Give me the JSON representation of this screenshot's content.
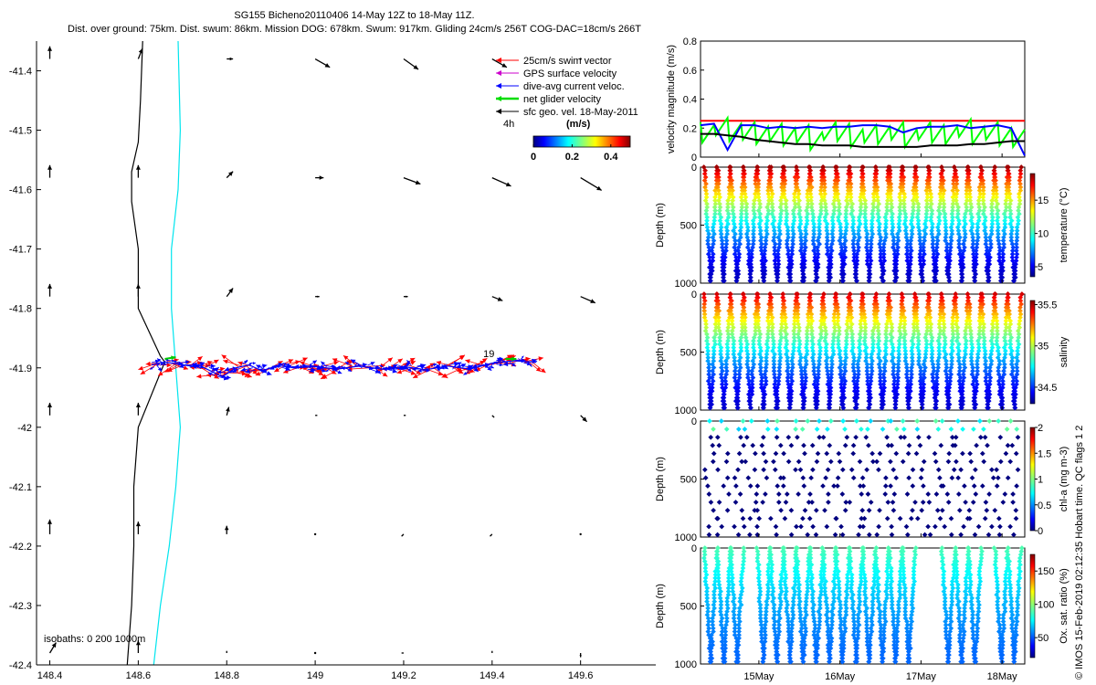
{
  "title": {
    "line1": "SG155 Bicheno20110406 14-May 12Z to 18-May 11Z.",
    "line2": "Dist. over ground: 75km. Dist. swum: 86km. Mission DOG: 678km. Swum: 917km. Gliding 24cm/s 256T COG-DAC=18cm/s 266T"
  },
  "copyright": "© IMOS 15-Feb-2019 02:12:35 Hobart time. QC flags 1  2",
  "chart_data": [
    {
      "type": "map",
      "xlim": [
        148.37,
        149.77
      ],
      "ylim": [
        -42.4,
        -41.35
      ],
      "x_ticks": [
        "148.4",
        "148.6",
        "148.8",
        "149",
        "149.2",
        "149.4",
        "149.6"
      ],
      "x_tick_values": [
        148.4,
        148.6,
        148.8,
        149.0,
        149.2,
        149.4,
        149.6
      ],
      "y_ticks": [
        "-41.4",
        "-41.5",
        "-41.6",
        "-41.7",
        "-41.8",
        "-41.9",
        "-42",
        "-42.1",
        "-42.2",
        "-42.3",
        "-42.4"
      ],
      "y_tick_values": [
        -41.4,
        -41.5,
        -41.6,
        -41.7,
        -41.8,
        -41.9,
        -42.0,
        -42.1,
        -42.2,
        -42.3,
        -42.4
      ],
      "legend": {
        "placement": "top-right",
        "entries": [
          {
            "label": "25cm/s swim vector",
            "color": "#ff0000"
          },
          {
            "label": "GPS surface velocity",
            "color": "#cc00cc"
          },
          {
            "label": "dive-avg current veloc.",
            "color": "#0000ff"
          },
          {
            "label": "net glider velocity",
            "color": "#00dd00"
          },
          {
            "label": "sfc geo. vel. 18-May-2011",
            "color": "#000000"
          }
        ],
        "time_label": "4h",
        "units_label": "(m/s)",
        "colorbar_ticks": [
          "0",
          "0.2",
          "0.4"
        ],
        "colorbar_tick_values": [
          0,
          0.2,
          0.4
        ],
        "colorbar_range": [
          0,
          0.5
        ]
      },
      "isobath_label": "isobaths: 0   200  1000m",
      "dive_label": "19",
      "isobath_200": [
        [
          148.61,
          -41.35
        ],
        [
          148.605,
          -41.45
        ],
        [
          148.6,
          -41.52
        ],
        [
          148.585,
          -41.57
        ],
        [
          148.585,
          -41.62
        ],
        [
          148.6,
          -41.7
        ],
        [
          148.6,
          -41.8
        ],
        [
          148.65,
          -41.88
        ],
        [
          148.66,
          -41.89
        ],
        [
          148.6,
          -42.0
        ],
        [
          148.59,
          -42.1
        ],
        [
          148.59,
          -42.2
        ],
        [
          148.585,
          -42.3
        ],
        [
          148.575,
          -42.4
        ]
      ],
      "isobath_1000": [
        [
          148.69,
          -41.35
        ],
        [
          148.695,
          -41.5
        ],
        [
          148.69,
          -41.6
        ],
        [
          148.675,
          -41.7
        ],
        [
          148.675,
          -41.8
        ],
        [
          148.685,
          -41.9
        ],
        [
          148.695,
          -42.0
        ],
        [
          148.685,
          -42.1
        ],
        [
          148.67,
          -42.2
        ],
        [
          148.65,
          -42.3
        ],
        [
          148.635,
          -42.4
        ]
      ],
      "track": [
        [
          148.63,
          -41.895
        ],
        [
          148.66,
          -41.89
        ],
        [
          148.7,
          -41.895
        ],
        [
          148.75,
          -41.9
        ],
        [
          148.79,
          -41.915
        ],
        [
          148.82,
          -41.9
        ],
        [
          148.85,
          -41.895
        ],
        [
          148.88,
          -41.905
        ],
        [
          148.92,
          -41.895
        ],
        [
          148.95,
          -41.9
        ],
        [
          149.0,
          -41.898
        ],
        [
          149.05,
          -41.902
        ],
        [
          149.1,
          -41.897
        ],
        [
          149.15,
          -41.902
        ],
        [
          149.2,
          -41.898
        ],
        [
          149.25,
          -41.903
        ],
        [
          149.3,
          -41.897
        ],
        [
          149.35,
          -41.902
        ],
        [
          149.4,
          -41.892
        ],
        [
          149.45,
          -41.888
        ],
        [
          149.49,
          -41.89
        ]
      ],
      "current_vectors": {
        "lons": [
          148.4,
          148.6,
          148.8,
          149.0,
          149.2,
          149.4,
          149.6
        ],
        "lats": [
          -41.38,
          -41.58,
          -41.78,
          -41.98,
          -42.18,
          -42.38
        ],
        "u": [
          [
            0.0,
            0.02,
            0.03,
            0.07,
            0.07,
            0.07,
            0.0
          ],
          [
            0.0,
            0.0,
            0.03,
            0.04,
            0.08,
            0.09,
            0.1
          ],
          [
            0.0,
            0.0,
            0.03,
            0.02,
            0.02,
            0.05,
            0.07
          ],
          [
            0.0,
            0.0,
            0.01,
            0.01,
            0.01,
            0.01,
            0.03
          ],
          [
            0.0,
            0.0,
            0.0,
            0.0,
            -0.01,
            -0.01,
            0.0
          ],
          [
            0.03,
            0.0,
            0.0,
            0.0,
            -0.01,
            0.0,
            0.0
          ]
        ],
        "v": [
          [
            0.06,
            0.05,
            0.0,
            -0.04,
            -0.05,
            -0.04,
            0.0
          ],
          [
            0.06,
            0.06,
            0.03,
            0.0,
            -0.03,
            -0.04,
            -0.06
          ],
          [
            0.06,
            0.06,
            0.04,
            0.0,
            0.0,
            -0.02,
            -0.03
          ],
          [
            0.06,
            0.06,
            0.04,
            0.0,
            0.0,
            -0.01,
            -0.03
          ],
          [
            0.07,
            0.06,
            0.04,
            0.0,
            -0.01,
            -0.01,
            0.0
          ],
          [
            0.05,
            0.06,
            0.01,
            0.0,
            0.0,
            0.01,
            -0.02
          ]
        ]
      }
    },
    {
      "type": "line",
      "ylabel": "velocity magnitude (m/s)",
      "ylim": [
        0,
        0.8
      ],
      "y_ticks": [
        "0",
        "0.2",
        "0.4",
        "0.6",
        "0.8"
      ],
      "y_tick_values": [
        0,
        0.2,
        0.4,
        0.6,
        0.8
      ],
      "series": [
        {
          "color": "#ff0000",
          "values": [
            0.25,
            0.25,
            0.25,
            0.25,
            0.25,
            0.25,
            0.25,
            0.25,
            0.25,
            0.25,
            0.25,
            0.25,
            0.25,
            0.25,
            0.25,
            0.25,
            0.25,
            0.25,
            0.25,
            0.25,
            0.25,
            0.25,
            0.25,
            0.25,
            0.25
          ]
        },
        {
          "color": "#00ff00",
          "values": [
            0.24,
            0.22,
            0.27,
            0.23,
            0.24,
            0.21,
            0.23,
            0.2,
            0.22,
            0.17,
            0.24,
            0.23,
            0.19,
            0.22,
            0.21,
            0.24,
            0.19,
            0.24,
            0.22,
            0.21,
            0.26,
            0.21,
            0.24,
            0.2,
            0.19
          ]
        },
        {
          "color": "#0000ff",
          "values": [
            0.22,
            0.23,
            0.05,
            0.22,
            0.22,
            0.2,
            0.21,
            0.2,
            0.21,
            0.2,
            0.21,
            0.21,
            0.22,
            0.22,
            0.21,
            0.17,
            0.2,
            0.21,
            0.21,
            0.22,
            0.2,
            0.21,
            0.22,
            0.2,
            0.01
          ]
        },
        {
          "color": "#000000",
          "values": [
            0.16,
            0.16,
            0.15,
            0.14,
            0.12,
            0.11,
            0.1,
            0.09,
            0.09,
            0.08,
            0.08,
            0.08,
            0.07,
            0.07,
            0.07,
            0.07,
            0.07,
            0.08,
            0.08,
            0.08,
            0.09,
            0.09,
            0.1,
            0.11,
            0.11
          ]
        }
      ]
    },
    {
      "type": "scatter",
      "ylabel": "Depth (m)",
      "colorbar_label": "temperature (°C)",
      "y_ticks": [
        "0",
        "500",
        "1000"
      ],
      "y_tick_values": [
        0,
        500,
        1000
      ],
      "ylim": [
        1000,
        0
      ],
      "colorbar_ticks": [
        "5",
        "10",
        "15"
      ],
      "colorbar_tick_values": [
        5,
        10,
        15
      ],
      "colorbar_range": [
        3.5,
        19
      ],
      "n_profiles": 24,
      "surface_value": 18.5,
      "deep_value": 4.5,
      "max_depth": 980
    },
    {
      "type": "scatter",
      "ylabel": "Depth (m)",
      "colorbar_label": "salinity",
      "y_ticks": [
        "0",
        "500",
        "1000"
      ],
      "y_tick_values": [
        0,
        500,
        1000
      ],
      "ylim": [
        1000,
        0
      ],
      "colorbar_ticks": [
        "34.5",
        "35",
        "35.5"
      ],
      "colorbar_tick_values": [
        34.5,
        35,
        35.5
      ],
      "colorbar_range": [
        34.3,
        35.55
      ],
      "n_profiles": 24,
      "surface_value": 35.45,
      "deep_value": 34.4,
      "max_depth": 980
    },
    {
      "type": "scatter",
      "ylabel": "Depth (m)",
      "colorbar_label": "chl-a (mg m-3)",
      "y_ticks": [
        "0",
        "500",
        "1000"
      ],
      "y_tick_values": [
        0,
        500,
        1000
      ],
      "ylim": [
        1000,
        0
      ],
      "colorbar_ticks": [
        "0",
        "0.5",
        "1",
        "1.5",
        "2"
      ],
      "colorbar_tick_values": [
        0,
        0.5,
        1,
        1.5,
        2
      ],
      "colorbar_range": [
        0,
        2
      ],
      "n_profiles": 24,
      "surface_value": 0.8,
      "deep_value": 0.0,
      "max_depth": 980
    },
    {
      "type": "scatter",
      "ylabel": "Depth (m)",
      "colorbar_label": "Ox. sat. ratio (%)",
      "y_ticks": [
        "0",
        "500",
        "1000"
      ],
      "y_tick_values": [
        0,
        500,
        1000
      ],
      "ylim": [
        1000,
        0
      ],
      "colorbar_ticks": [
        "50",
        "100",
        "150"
      ],
      "colorbar_tick_values": [
        50,
        100,
        150
      ],
      "colorbar_range": [
        20,
        175
      ],
      "n_profiles": 24,
      "profile_gaps": [
        [
          2.3,
          3.4
        ],
        [
          15.5,
          17.8
        ],
        [
          20.6,
          21.5
        ]
      ],
      "surface_value": 90,
      "deep_value": 55,
      "max_depth": 980
    }
  ],
  "time_axis": {
    "labels": [
      "15May",
      "16May",
      "17May",
      "18May"
    ],
    "label_values": [
      0.72,
      1.72,
      2.72,
      3.72
    ],
    "range_days": [
      0,
      4
    ]
  }
}
